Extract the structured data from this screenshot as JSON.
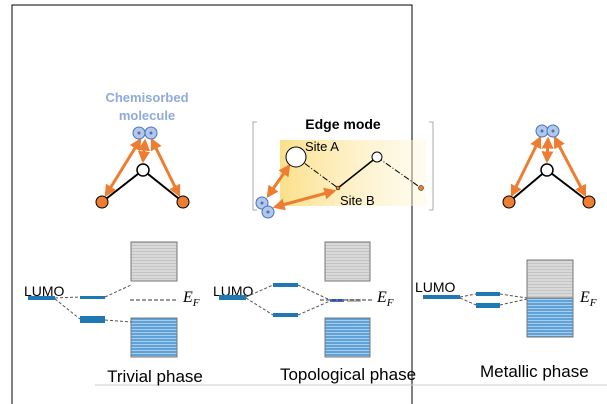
{
  "molecule_label": {
    "line1": "Chemisorbed",
    "line2": "molecule"
  },
  "edge_mode": {
    "title": "Edge mode",
    "site_a": "Site A",
    "site_b": "Site B"
  },
  "panels": [
    {
      "lumo": "LUMO",
      "fermi": {
        "symbol": "E",
        "subscript": "F"
      },
      "phase": "Trivial phase"
    },
    {
      "lumo": "LUMO",
      "fermi": {
        "symbol": "E",
        "subscript": "F"
      },
      "phase": "Topological phase"
    },
    {
      "lumo": "LUMO",
      "fermi": {
        "symbol": "E",
        "subscript": "F"
      },
      "phase": "Metallic phase"
    }
  ]
}
